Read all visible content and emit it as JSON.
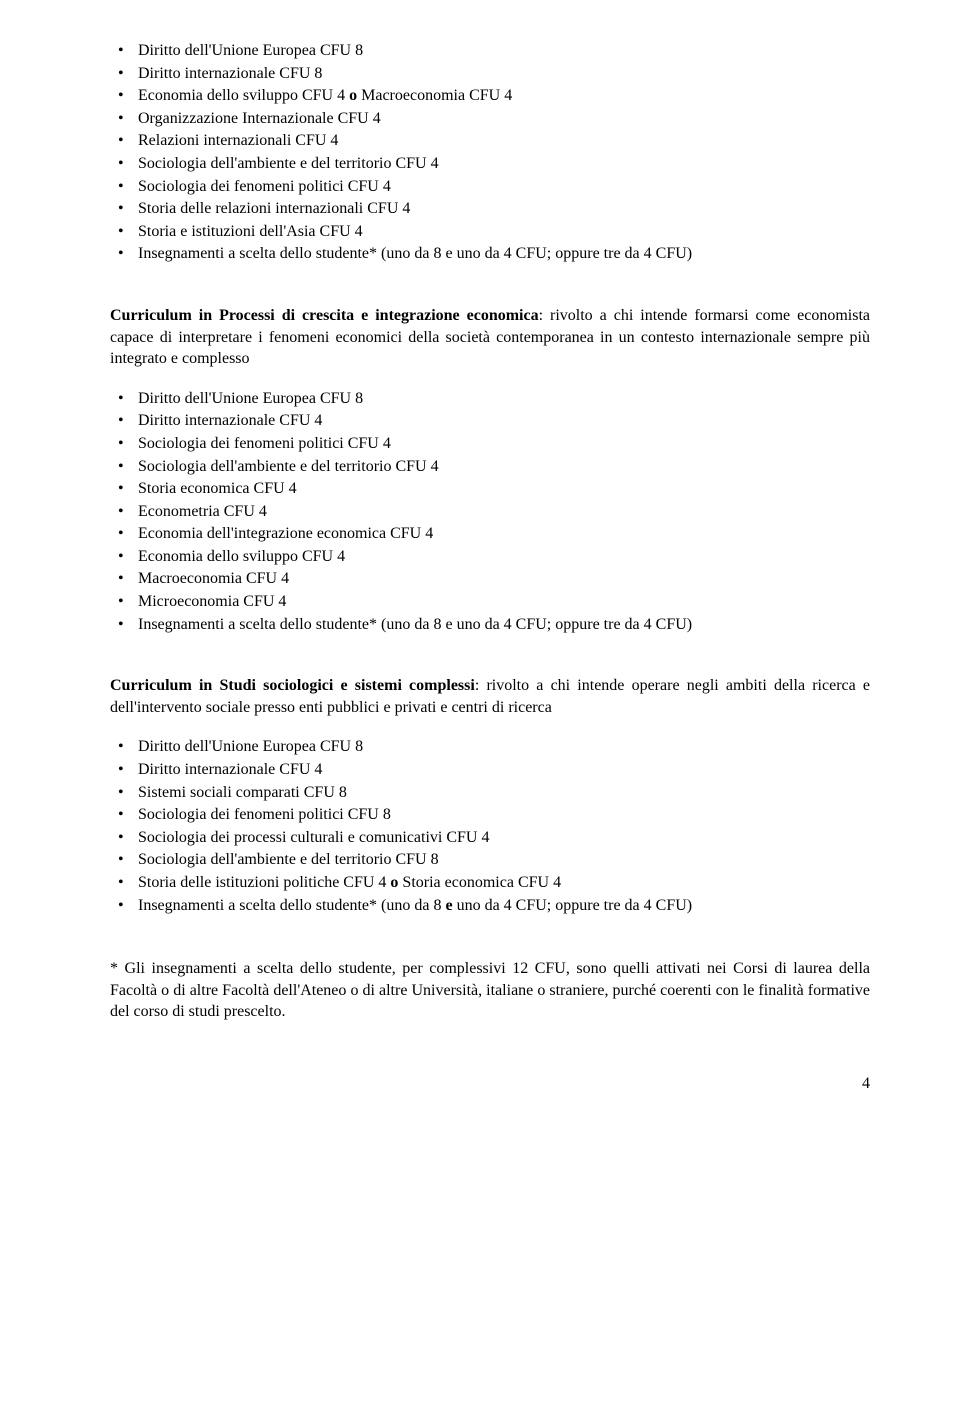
{
  "list1": [
    "Diritto dell'Unione Europea CFU 8",
    "Diritto internazionale  CFU  8",
    "Economia dello sviluppo  CFU 4  o  Macroeconomia  CFU 4",
    "Organizzazione Internazionale  CFU 4",
    "Relazioni internazionali  CFU 4",
    "Sociologia dell'ambiente e del territorio  CFU 4",
    "Sociologia dei fenomeni politici   CFU 4",
    "Storia delle relazioni internazionali  CFU 4",
    "Storia e istituzioni dell'Asia  CFU 4",
    "Insegnamenti a scelta dello studente* (uno da 8  e uno da 4 CFU; oppure tre da 4  CFU)"
  ],
  "section2": {
    "title": "Curriculum in   Processi di crescita e integrazione economica",
    "body": ": rivolto a chi intende formarsi come economista capace di interpretare i fenomeni economici della società contemporanea in un contesto internazionale sempre più integrato e complesso"
  },
  "list2": [
    "Diritto dell'Unione Europea   CFU 8",
    "Diritto internazionale  CFU 4",
    "Sociologia dei fenomeni politici  CFU 4",
    "Sociologia dell'ambiente e del territorio  CFU 4",
    "Storia economica  CFU 4",
    "Econometria   CFU 4",
    "Economia dell'integrazione economica   CFU 4",
    "Economia dello  sviluppo  CFU 4",
    "Macroeconomia   CFU 4",
    "Microeconomia    CFU 4",
    "Insegnamenti a scelta dello studente* (uno da 8  e uno da 4 CFU; oppure tre da 4  CFU)"
  ],
  "section3": {
    "title": "Curriculum in Studi sociologici e sistemi complessi",
    "body": ": rivolto a chi intende operare negli ambiti della ricerca e dell'intervento sociale presso enti pubblici e privati e centri di ricerca"
  },
  "list3": [
    "Diritto dell'Unione Europea    CFU 8",
    "Diritto internazionale      CFU  4",
    "Sistemi sociali comparati        CFU  8",
    "Sociologia dei fenomeni politici   CFU 8",
    "Sociologia dei processi culturali e comunicativi    CFU 4",
    "Sociologia dell'ambiente e del  territorio   CFU  8",
    "Storia delle istituzioni politiche CFU 4  o  Storia economica CFU 4",
    "Insegnamenti a scelta dello studente* (uno da 8 e uno da 4 CFU; oppure tre da 4  CFU)"
  ],
  "list1_bold_o_index": 2,
  "list3_bold_o_index": 6,
  "list3_bold_e_index": 7,
  "footnote": " * Gli insegnamenti a scelta dello studente, per complessivi 12 CFU,  sono quelli attivati nei Corsi di laurea della Facoltà o di altre Facoltà dell'Ateneo o di altre Università, italiane o straniere, purché coerenti con le finalità formative del corso di studi prescelto.",
  "page_num": "4"
}
